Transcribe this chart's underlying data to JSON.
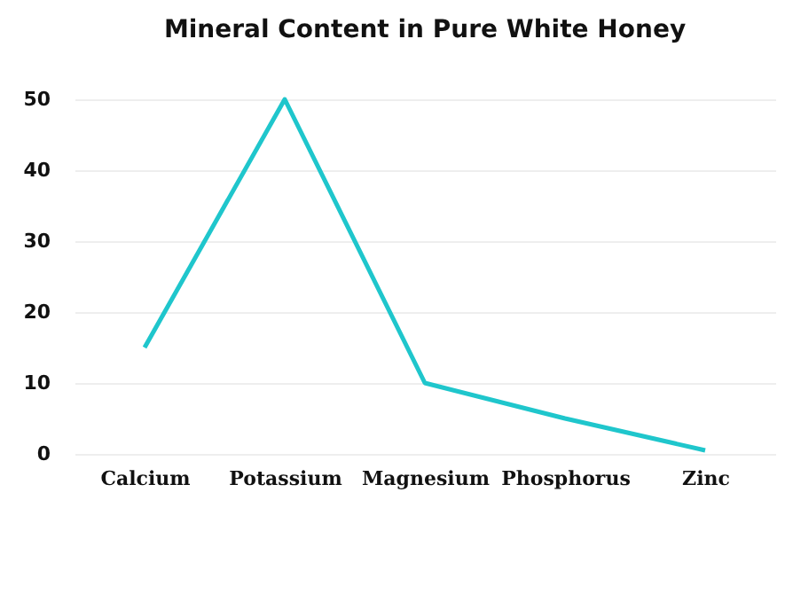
{
  "chart_data": {
    "type": "line",
    "title": "Mineral Content in Pure White Honey",
    "categories": [
      "Calcium",
      "Potassium",
      "Magnesium",
      "Phosphorus",
      "Zinc"
    ],
    "series": [
      {
        "color": "#1fc6cc",
        "values": [
          15,
          50,
          10,
          5,
          0.5
        ]
      }
    ],
    "ylim": [
      0,
      50
    ],
    "yticks": [
      0,
      10,
      20,
      30,
      40,
      50
    ],
    "grid": "y",
    "marker": "none",
    "line_style": "solid"
  }
}
